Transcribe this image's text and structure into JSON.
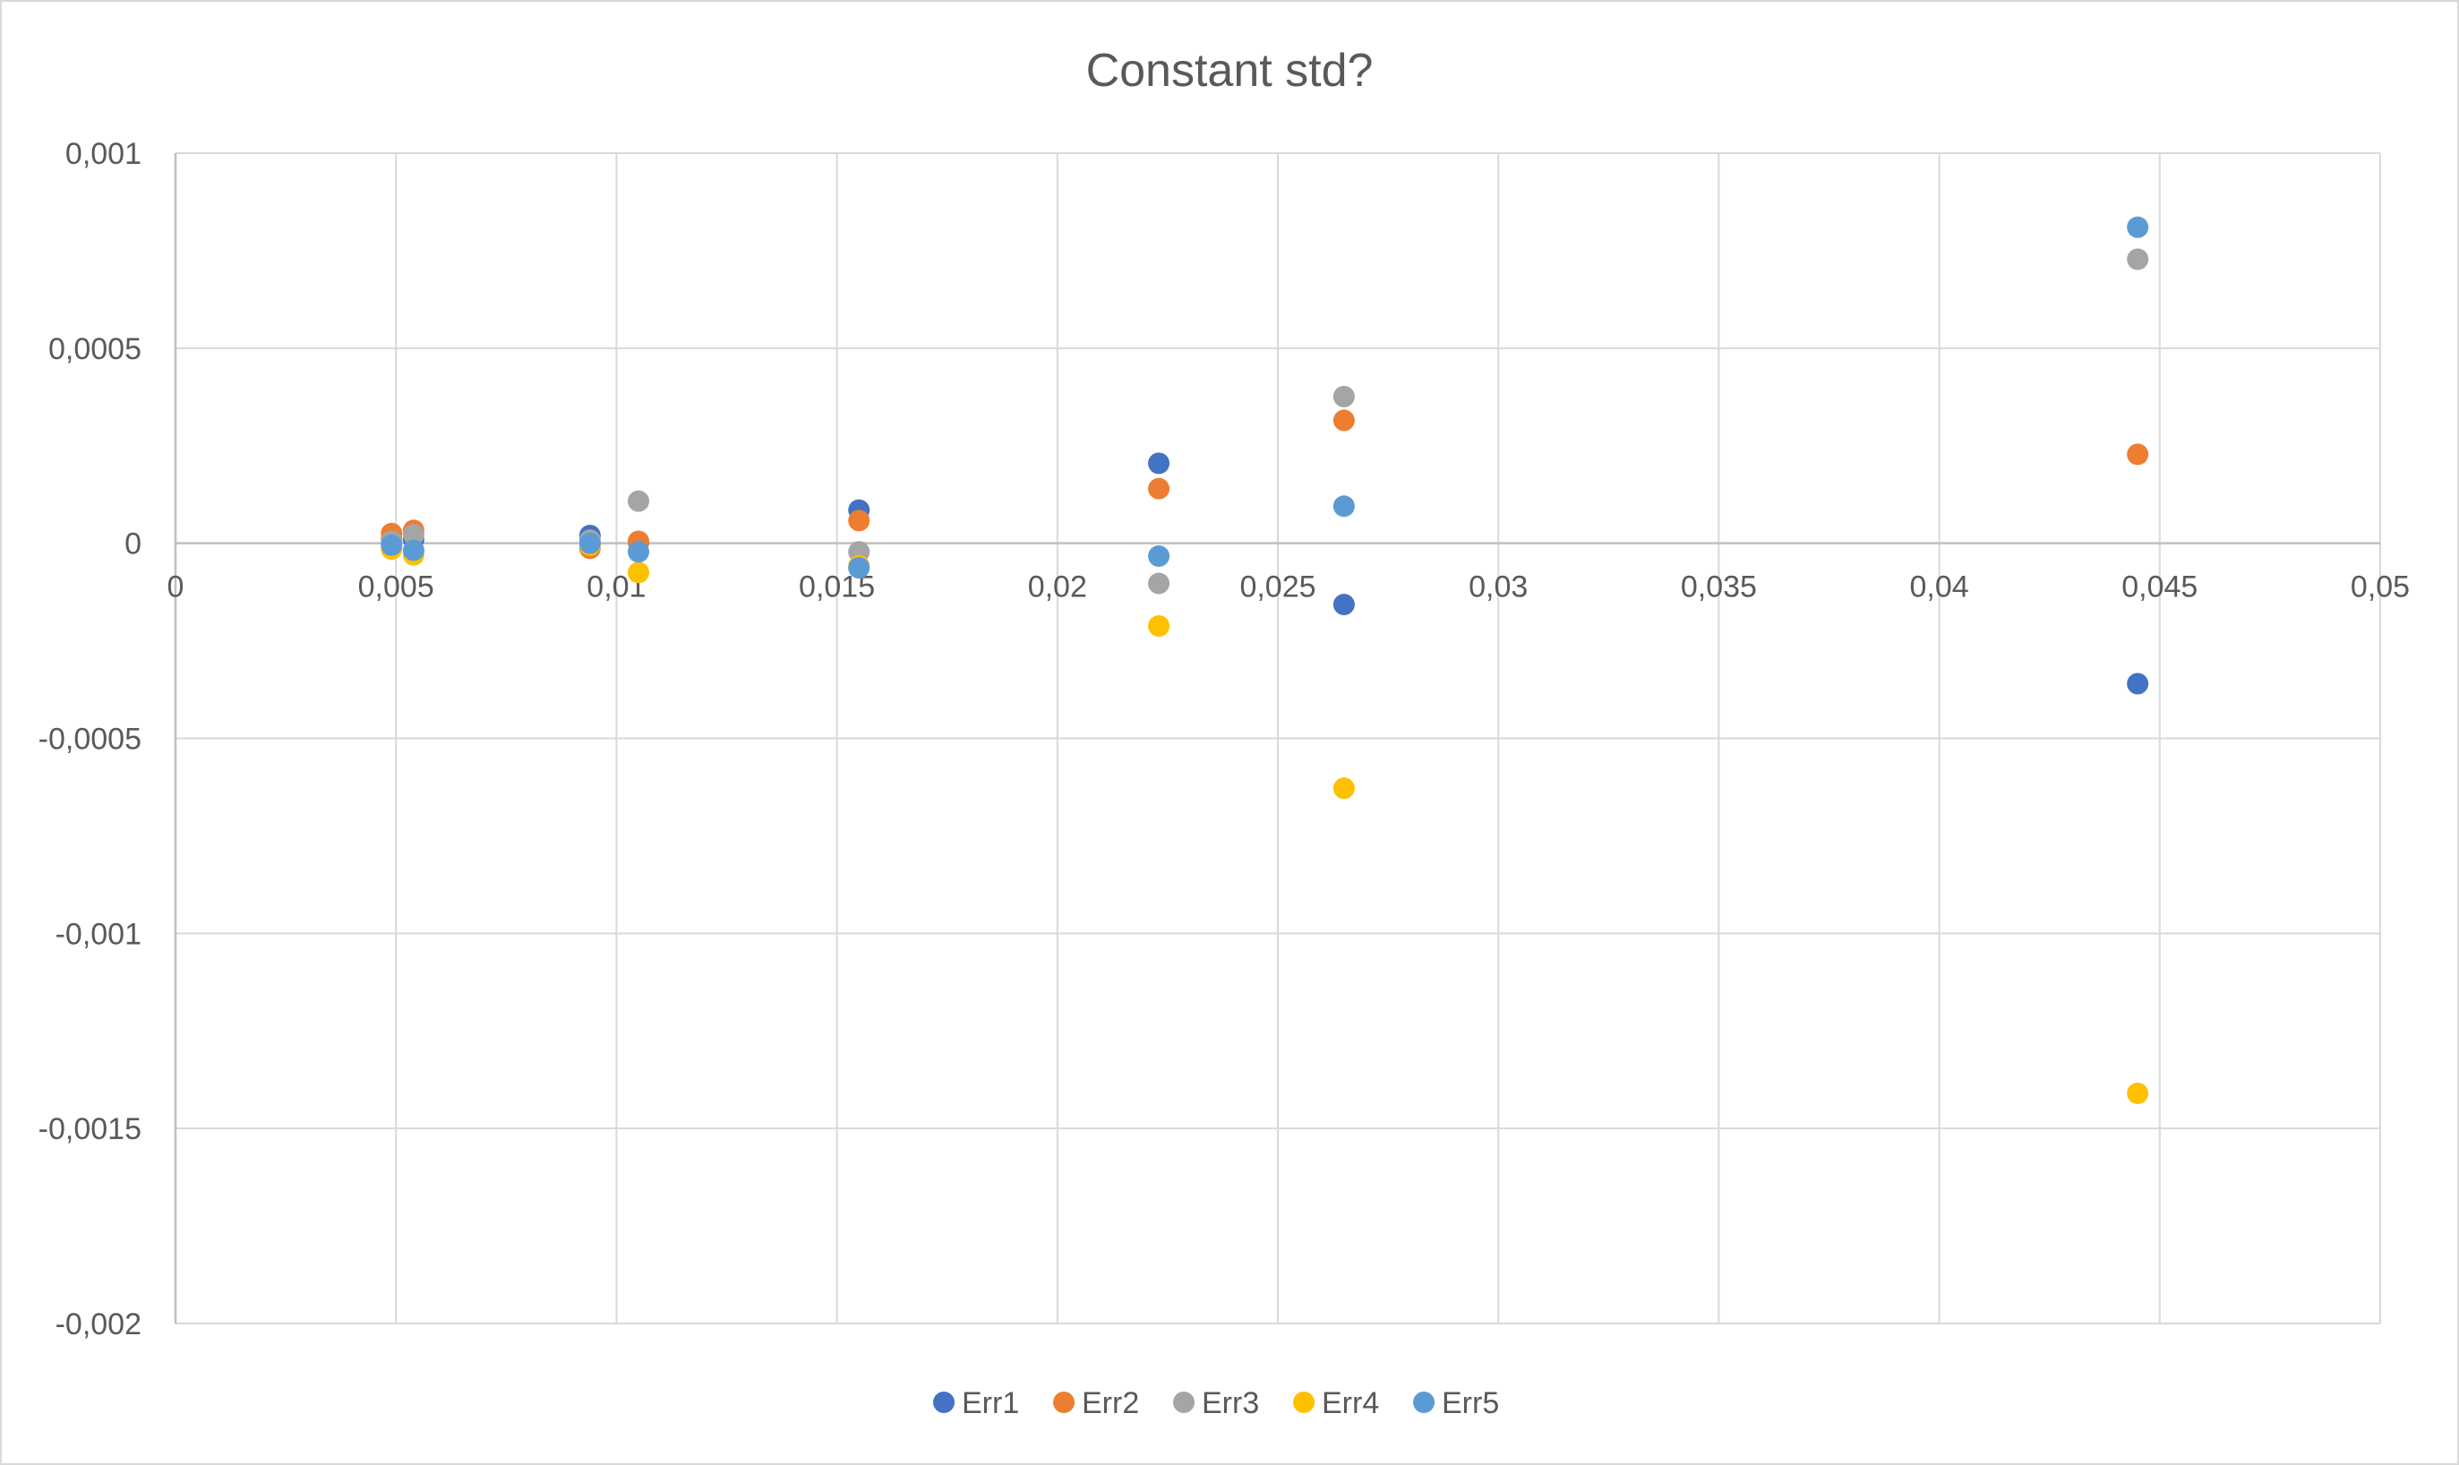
{
  "chart_data": {
    "type": "scatter",
    "title": "Constant std?",
    "xlim": [
      0,
      0.05
    ],
    "ylim": [
      -0.002,
      0.001
    ],
    "x_ticks": [
      "0",
      "0,005",
      "0,01",
      "0,015",
      "0,02",
      "0,025",
      "0,03",
      "0,035",
      "0,04",
      "0,045",
      "0,05"
    ],
    "x_tick_values": [
      0,
      0.005,
      0.01,
      0.015,
      0.02,
      0.025,
      0.03,
      0.035,
      0.04,
      0.045,
      0.05
    ],
    "y_ticks": [
      "0,001",
      "0,0005",
      "0",
      "-0,0005",
      "-0,001",
      "-0,0015",
      "-0,002"
    ],
    "y_tick_values": [
      0.001,
      0.0005,
      0,
      -0.0005,
      -0.001,
      -0.0015,
      -0.002
    ],
    "grid": true,
    "legend_position": "bottom",
    "series": [
      {
        "name": "Err1",
        "color": "#4472C4",
        "x": [
          0.0049,
          0.0054,
          0.0094,
          0.0105,
          0.0155,
          0.0223,
          0.0265,
          0.0445
        ],
        "y": [
          1e-05,
          1e-05,
          2e-05,
          2e-06,
          8.5e-05,
          0.000205,
          -0.000157,
          -0.00036
        ]
      },
      {
        "name": "Err2",
        "color": "#ED7D31",
        "x": [
          0.0049,
          0.0054,
          0.0094,
          0.0105,
          0.0155,
          0.0223,
          0.0265,
          0.0445
        ],
        "y": [
          2.5e-05,
          3.3e-05,
          -1.3e-05,
          5e-06,
          5.8e-05,
          0.00014,
          0.000315,
          0.000228
        ]
      },
      {
        "name": "Err3",
        "color": "#A5A5A5",
        "x": [
          0.0049,
          0.0054,
          0.0094,
          0.0105,
          0.0155,
          0.0223,
          0.0265,
          0.0445
        ],
        "y": [
          5e-06,
          2.2e-05,
          8e-06,
          0.000108,
          -2.2e-05,
          -0.000103,
          0.000376,
          0.000728
        ]
      },
      {
        "name": "Err4",
        "color": "#FFC000",
        "x": [
          0.0049,
          0.0054,
          0.0094,
          0.0105,
          0.0155,
          0.0223,
          0.0265,
          0.0445
        ],
        "y": [
          -1.5e-05,
          -3e-05,
          -5e-06,
          -7.5e-05,
          -5.8e-05,
          -0.000212,
          -0.000628,
          -0.00141
        ]
      },
      {
        "name": "Err5",
        "color": "#5B9BD5",
        "x": [
          0.0049,
          0.0054,
          0.0094,
          0.0105,
          0.0155,
          0.0223,
          0.0265,
          0.0445
        ],
        "y": [
          -5e-06,
          -1.8e-05,
          0,
          -2.2e-05,
          -6.3e-05,
          -3.3e-05,
          9.5e-05,
          0.00081
        ]
      }
    ]
  }
}
